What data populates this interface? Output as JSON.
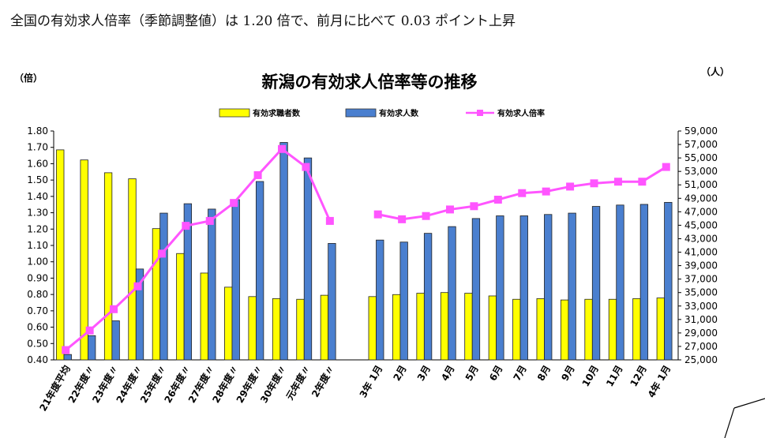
{
  "headline": "全国の有効求人倍率（季節調整値）は 1.20 倍で、前月に比べて 0.03 ポイント上昇",
  "chart_data": {
    "type": "bar",
    "title": "新潟の有効求人倍率等の推移",
    "left_unit": "（倍）",
    "right_unit": "（人）",
    "categories": [
      "21年度平均",
      "22年度〃",
      "23年度〃",
      "24年度〃",
      "25年度〃",
      "26年度〃",
      "27年度〃",
      "28年度〃",
      "29年度〃",
      "30年度〃",
      "元年度〃",
      "2年度〃",
      "",
      "3年 1月",
      "2月",
      "3月",
      "4月",
      "5月",
      "6月",
      "7月",
      "8月",
      "9月",
      "10月",
      "11月",
      "12月",
      "4年 1月"
    ],
    "series": [
      {
        "name": "有効求職者数",
        "axis": "right",
        "kind": "bar",
        "color": "#ffff00",
        "values": [
          56200,
          54700,
          52800,
          51900,
          44500,
          40800,
          37900,
          35800,
          34400,
          34100,
          34000,
          34600,
          null,
          34400,
          34700,
          34900,
          35000,
          34900,
          34500,
          34000,
          34100,
          33900,
          34000,
          34000,
          34100,
          34200
        ]
      },
      {
        "name": "有効求人数",
        "axis": "right",
        "kind": "bar",
        "color": "#4a7fcf",
        "values": [
          25800,
          28600,
          30800,
          38500,
          46800,
          48200,
          47400,
          48800,
          51500,
          57300,
          55000,
          42300,
          null,
          42800,
          42500,
          43800,
          44800,
          46000,
          46400,
          46400,
          46600,
          46800,
          47800,
          48000,
          48100,
          48400
        ]
      },
      {
        "name": "有効求人倍率",
        "axis": "left",
        "kind": "line",
        "color": "#ff55ff",
        "values": [
          0.46,
          0.58,
          0.71,
          0.85,
          1.05,
          1.22,
          1.25,
          1.36,
          1.53,
          1.69,
          1.58,
          1.25,
          null,
          1.29,
          1.26,
          1.28,
          1.32,
          1.34,
          1.38,
          1.42,
          1.43,
          1.46,
          1.48,
          1.49,
          1.49,
          1.58
        ]
      }
    ],
    "y_left": {
      "min": 0.4,
      "max": 1.8,
      "step": 0.1,
      "tick_labels": [
        "0.40",
        "0.50",
        "0.60",
        "0.70",
        "0.80",
        "0.90",
        "1.00",
        "1.10",
        "1.20",
        "1.30",
        "1.40",
        "1.50",
        "1.60",
        "1.70",
        "1.80"
      ]
    },
    "y_right": {
      "min": 25000,
      "max": 59000,
      "step": 2000,
      "tick_labels": [
        "25,000",
        "27,000",
        "29,000",
        "31,000",
        "33,000",
        "35,000",
        "37,000",
        "39,000",
        "41,000",
        "43,000",
        "45,000",
        "47,000",
        "49,000",
        "51,000",
        "53,000",
        "55,000",
        "57,000",
        "59,000"
      ]
    },
    "legend_position": "top-center",
    "grid": false
  }
}
